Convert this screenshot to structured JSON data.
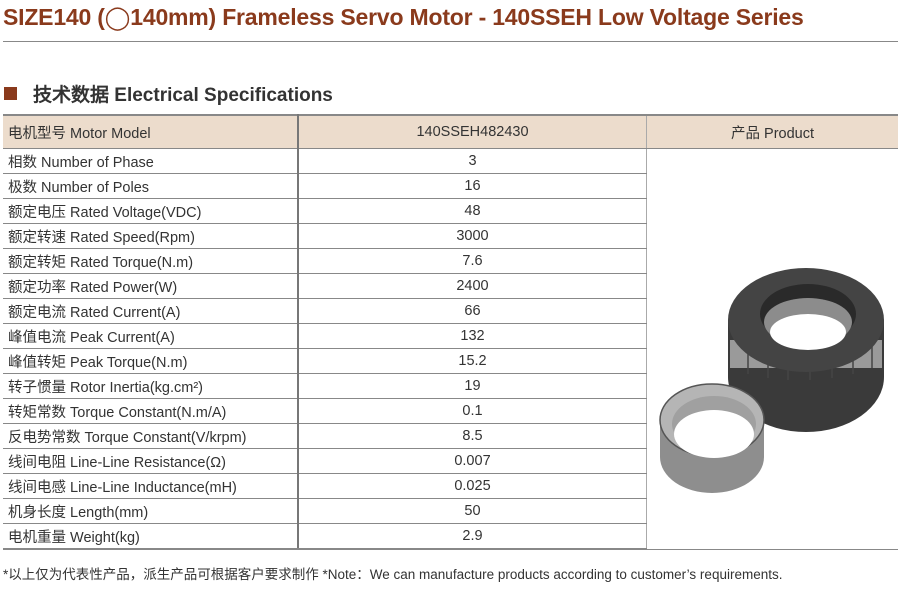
{
  "title": "SIZE140 (◯140mm) Frameless Servo Motor - 140SSEH Low Voltage Series",
  "section_title": "技术数据 Electrical Specifications",
  "table": {
    "headers": [
      "电机型号 Motor Model",
      "140SSEH482430",
      "产品 Product"
    ],
    "rows": [
      {
        "label": "相数 Number of Phase",
        "value": "3"
      },
      {
        "label": "极数 Number of Poles",
        "value": "16"
      },
      {
        "label": "额定电压 Rated Voltage(VDC)",
        "value": "48"
      },
      {
        "label": "额定转速 Rated Speed(Rpm)",
        "value": "3000"
      },
      {
        "label": "额定转矩 Rated Torque(N.m)",
        "value": "7.6"
      },
      {
        "label": "额定功率 Rated Power(W)",
        "value": "2400"
      },
      {
        "label": "额定电流 Rated Current(A)",
        "value": "66"
      },
      {
        "label": "峰值电流 Peak Current(A)",
        "value": "132"
      },
      {
        "label": "峰值转矩 Peak Torque(N.m)",
        "value": "15.2"
      },
      {
        "label": "转子惯量 Rotor Inertia(kg.cm²)",
        "value": "19"
      },
      {
        "label": "转矩常数 Torque Constant(N.m/A)",
        "value": "0.1"
      },
      {
        "label": "反电势常数 Torque Constant(V/krpm)",
        "value": "8.5"
      },
      {
        "label": "线间电阻 Line-Line Resistance(Ω)",
        "value": "0.007"
      },
      {
        "label": "线间电感 Line-Line Inductance(mH)",
        "value": "0.025"
      },
      {
        "label": "机身长度 Length(mm)",
        "value": "50"
      },
      {
        "label": "电机重量 Weight(kg)",
        "value": "2.9"
      }
    ]
  },
  "note": "*以上仅为代表性产品，派生产品可根据客户要求制作   *Note：We can manufacture products according to customer’s requirements.",
  "colors": {
    "accent": "#8a3a1c",
    "header_bg": "#ecdccc"
  }
}
